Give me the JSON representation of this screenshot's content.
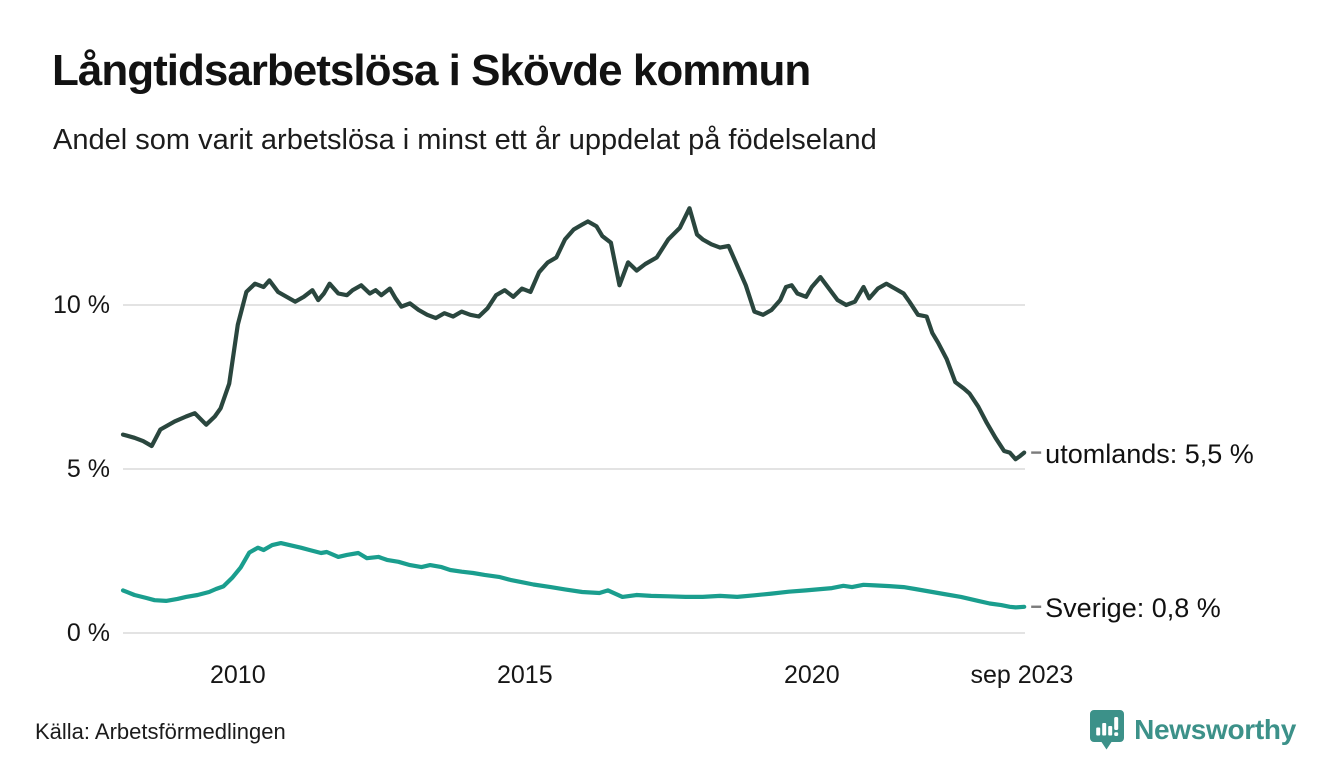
{
  "header": {
    "title": "Långtidsarbetslösa i Skövde kommun",
    "subtitle": "Andel som varit arbetslösa i minst ett år uppdelat på födelseland"
  },
  "footer": {
    "source": "Källa: Arbetsförmedlingen",
    "brand": "Newsworthy",
    "brand_color": "#3c9189"
  },
  "chart_data": {
    "type": "line",
    "title": "Långtidsarbetslösa i Skövde kommun",
    "subtitle": "Andel som varit arbetslösa i minst ett år uppdelat på födelseland",
    "unit": "%",
    "grid": "horizontal",
    "grid_color": "#e3e3e3",
    "connector_color": "#7c7c7c",
    "x_axis": {
      "min": 2008,
      "max": 2023.75,
      "ticks": [
        {
          "label": "2010",
          "x": 2010
        },
        {
          "label": "2015",
          "x": 2015
        },
        {
          "label": "2020",
          "x": 2020
        },
        {
          "label": "sep 2023",
          "x": 2023.66
        }
      ]
    },
    "y_axis": {
      "min": 0,
      "max": 13.5,
      "ticks": [
        {
          "label": "10 %",
          "value": 10
        },
        {
          "label": "5 %",
          "value": 5
        },
        {
          "label": "0 %",
          "value": 0
        }
      ]
    },
    "series": [
      {
        "name": "utomlands",
        "end_label": "utomlands: 5,5 %",
        "last_value": "5,5 %",
        "color": "#2a463e",
        "points": [
          [
            2008.0,
            6.05
          ],
          [
            2008.2,
            5.95
          ],
          [
            2008.35,
            5.85
          ],
          [
            2008.5,
            5.7
          ],
          [
            2008.65,
            6.2
          ],
          [
            2008.9,
            6.45
          ],
          [
            2009.1,
            6.6
          ],
          [
            2009.25,
            6.7
          ],
          [
            2009.45,
            6.35
          ],
          [
            2009.6,
            6.6
          ],
          [
            2009.7,
            6.85
          ],
          [
            2009.85,
            7.6
          ],
          [
            2010.0,
            9.4
          ],
          [
            2010.15,
            10.4
          ],
          [
            2010.3,
            10.65
          ],
          [
            2010.45,
            10.55
          ],
          [
            2010.55,
            10.75
          ],
          [
            2010.7,
            10.4
          ],
          [
            2010.85,
            10.25
          ],
          [
            2011.0,
            10.1
          ],
          [
            2011.15,
            10.25
          ],
          [
            2011.3,
            10.45
          ],
          [
            2011.4,
            10.15
          ],
          [
            2011.5,
            10.35
          ],
          [
            2011.6,
            10.65
          ],
          [
            2011.75,
            10.35
          ],
          [
            2011.9,
            10.3
          ],
          [
            2012.0,
            10.45
          ],
          [
            2012.15,
            10.6
          ],
          [
            2012.3,
            10.35
          ],
          [
            2012.4,
            10.45
          ],
          [
            2012.5,
            10.3
          ],
          [
            2012.65,
            10.5
          ],
          [
            2012.75,
            10.2
          ],
          [
            2012.85,
            9.95
          ],
          [
            2013.0,
            10.05
          ],
          [
            2013.15,
            9.85
          ],
          [
            2013.3,
            9.7
          ],
          [
            2013.45,
            9.6
          ],
          [
            2013.6,
            9.75
          ],
          [
            2013.75,
            9.65
          ],
          [
            2013.9,
            9.8
          ],
          [
            2014.05,
            9.7
          ],
          [
            2014.2,
            9.65
          ],
          [
            2014.35,
            9.9
          ],
          [
            2014.5,
            10.3
          ],
          [
            2014.65,
            10.45
          ],
          [
            2014.8,
            10.25
          ],
          [
            2014.95,
            10.5
          ],
          [
            2015.1,
            10.4
          ],
          [
            2015.25,
            11.0
          ],
          [
            2015.4,
            11.3
          ],
          [
            2015.55,
            11.45
          ],
          [
            2015.7,
            12.0
          ],
          [
            2015.85,
            12.3
          ],
          [
            2016.0,
            12.45
          ],
          [
            2016.1,
            12.55
          ],
          [
            2016.25,
            12.4
          ],
          [
            2016.35,
            12.1
          ],
          [
            2016.5,
            11.9
          ],
          [
            2016.65,
            10.6
          ],
          [
            2016.8,
            11.3
          ],
          [
            2016.95,
            11.05
          ],
          [
            2017.1,
            11.25
          ],
          [
            2017.3,
            11.45
          ],
          [
            2017.5,
            12.0
          ],
          [
            2017.7,
            12.35
          ],
          [
            2017.87,
            12.95
          ],
          [
            2018.0,
            12.15
          ],
          [
            2018.1,
            12.0
          ],
          [
            2018.25,
            11.85
          ],
          [
            2018.4,
            11.75
          ],
          [
            2018.55,
            11.8
          ],
          [
            2018.7,
            11.2
          ],
          [
            2018.85,
            10.6
          ],
          [
            2019.0,
            9.8
          ],
          [
            2019.15,
            9.7
          ],
          [
            2019.3,
            9.85
          ],
          [
            2019.45,
            10.15
          ],
          [
            2019.55,
            10.55
          ],
          [
            2019.65,
            10.6
          ],
          [
            2019.75,
            10.35
          ],
          [
            2019.9,
            10.25
          ],
          [
            2020.0,
            10.55
          ],
          [
            2020.15,
            10.85
          ],
          [
            2020.3,
            10.5
          ],
          [
            2020.45,
            10.15
          ],
          [
            2020.6,
            10.0
          ],
          [
            2020.75,
            10.1
          ],
          [
            2020.9,
            10.55
          ],
          [
            2021.0,
            10.2
          ],
          [
            2021.15,
            10.5
          ],
          [
            2021.3,
            10.65
          ],
          [
            2021.45,
            10.5
          ],
          [
            2021.6,
            10.35
          ],
          [
            2021.7,
            10.1
          ],
          [
            2021.85,
            9.7
          ],
          [
            2022.0,
            9.65
          ],
          [
            2022.1,
            9.15
          ],
          [
            2022.2,
            8.85
          ],
          [
            2022.35,
            8.35
          ],
          [
            2022.5,
            7.65
          ],
          [
            2022.65,
            7.45
          ],
          [
            2022.75,
            7.3
          ],
          [
            2022.9,
            6.9
          ],
          [
            2023.05,
            6.4
          ],
          [
            2023.2,
            5.95
          ],
          [
            2023.35,
            5.55
          ],
          [
            2023.45,
            5.5
          ],
          [
            2023.55,
            5.3
          ],
          [
            2023.63,
            5.4
          ],
          [
            2023.7,
            5.5
          ]
        ]
      },
      {
        "name": "Sverige",
        "end_label": "Sverige: 0,8 %",
        "last_value": "0,8 %",
        "color": "#1a9e8e",
        "points": [
          [
            2008.0,
            1.3
          ],
          [
            2008.2,
            1.16
          ],
          [
            2008.4,
            1.07
          ],
          [
            2008.55,
            1.0
          ],
          [
            2008.75,
            0.98
          ],
          [
            2008.95,
            1.04
          ],
          [
            2009.1,
            1.1
          ],
          [
            2009.3,
            1.16
          ],
          [
            2009.5,
            1.25
          ],
          [
            2009.62,
            1.34
          ],
          [
            2009.75,
            1.42
          ],
          [
            2009.9,
            1.68
          ],
          [
            2010.05,
            2.0
          ],
          [
            2010.2,
            2.45
          ],
          [
            2010.35,
            2.6
          ],
          [
            2010.45,
            2.53
          ],
          [
            2010.6,
            2.68
          ],
          [
            2010.75,
            2.74
          ],
          [
            2010.9,
            2.68
          ],
          [
            2011.1,
            2.6
          ],
          [
            2011.25,
            2.53
          ],
          [
            2011.45,
            2.44
          ],
          [
            2011.55,
            2.47
          ],
          [
            2011.75,
            2.32
          ],
          [
            2011.9,
            2.38
          ],
          [
            2012.1,
            2.44
          ],
          [
            2012.25,
            2.28
          ],
          [
            2012.45,
            2.32
          ],
          [
            2012.6,
            2.23
          ],
          [
            2012.8,
            2.17
          ],
          [
            2013.0,
            2.07
          ],
          [
            2013.2,
            2.01
          ],
          [
            2013.35,
            2.07
          ],
          [
            2013.55,
            2.01
          ],
          [
            2013.7,
            1.92
          ],
          [
            2013.9,
            1.87
          ],
          [
            2014.1,
            1.83
          ],
          [
            2014.3,
            1.77
          ],
          [
            2014.55,
            1.71
          ],
          [
            2014.75,
            1.62
          ],
          [
            2014.95,
            1.55
          ],
          [
            2015.15,
            1.48
          ],
          [
            2015.45,
            1.4
          ],
          [
            2015.7,
            1.33
          ],
          [
            2016.0,
            1.25
          ],
          [
            2016.3,
            1.22
          ],
          [
            2016.45,
            1.3
          ],
          [
            2016.7,
            1.1
          ],
          [
            2016.95,
            1.16
          ],
          [
            2017.2,
            1.13
          ],
          [
            2017.5,
            1.12
          ],
          [
            2017.8,
            1.1
          ],
          [
            2018.1,
            1.1
          ],
          [
            2018.4,
            1.13
          ],
          [
            2018.7,
            1.1
          ],
          [
            2019.0,
            1.15
          ],
          [
            2019.3,
            1.2
          ],
          [
            2019.6,
            1.26
          ],
          [
            2019.9,
            1.3
          ],
          [
            2020.1,
            1.33
          ],
          [
            2020.35,
            1.37
          ],
          [
            2020.55,
            1.44
          ],
          [
            2020.7,
            1.4
          ],
          [
            2020.9,
            1.47
          ],
          [
            2021.1,
            1.45
          ],
          [
            2021.35,
            1.43
          ],
          [
            2021.6,
            1.4
          ],
          [
            2021.8,
            1.34
          ],
          [
            2022.0,
            1.28
          ],
          [
            2022.3,
            1.19
          ],
          [
            2022.6,
            1.1
          ],
          [
            2022.9,
            0.98
          ],
          [
            2023.1,
            0.9
          ],
          [
            2023.3,
            0.85
          ],
          [
            2023.45,
            0.8
          ],
          [
            2023.55,
            0.78
          ],
          [
            2023.7,
            0.8
          ]
        ]
      }
    ]
  }
}
